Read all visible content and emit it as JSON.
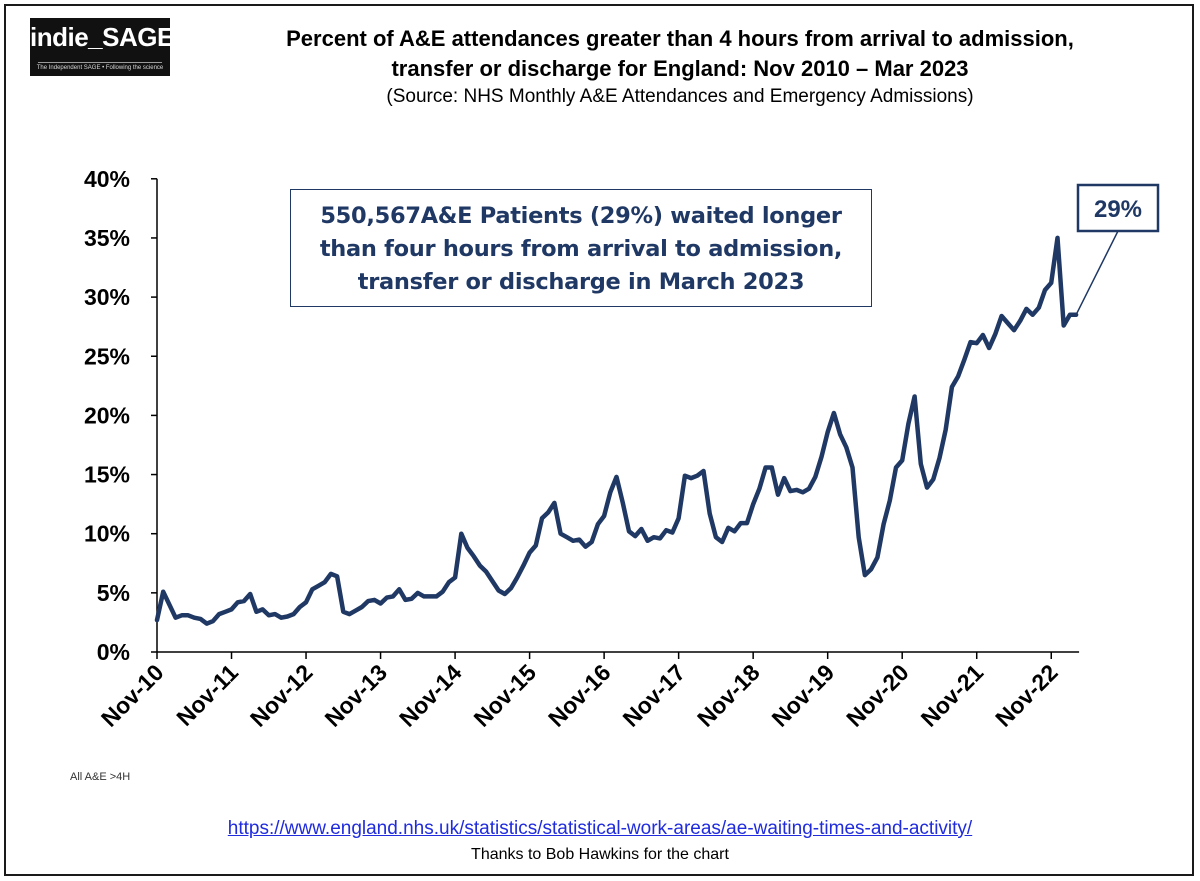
{
  "logo": {
    "main": "indie_SAGE",
    "tagline": "The Independent SAGE • Following the science"
  },
  "header": {
    "title_line1": "Percent of A&E attendances greater than 4 hours from arrival to admission,",
    "title_line2": "transfer or discharge for England: Nov 2010 – Mar 2023",
    "source": "(Source: NHS Monthly A&E Attendances and Emergency Admissions)"
  },
  "callout": {
    "line1": "550,567A&E Patients (29%) waited longer",
    "line2": "than four hours from arrival to admission,",
    "line3": "transfer or discharge in March 2023"
  },
  "footer": {
    "note": "All A&E >4H",
    "url": "https://www.england.nhs.uk/statistics/statistical-work-areas/ae-waiting-times-and-activity/",
    "thanks": "Thanks to Bob Hawkins for the chart"
  },
  "colors": {
    "series": "#1f3864",
    "axis": "#000000"
  },
  "chart_data": {
    "type": "line",
    "title": "Percent of A&E attendances greater than 4 hours from arrival to admission, transfer or discharge for England: Nov 2010 – Mar 2023",
    "xlabel": "",
    "ylabel": "",
    "ylim": [
      0,
      40
    ],
    "y_ticks": [
      0,
      5,
      10,
      15,
      20,
      25,
      30,
      35,
      40
    ],
    "y_tick_labels": [
      "0%",
      "5%",
      "10%",
      "15%",
      "20%",
      "25%",
      "30%",
      "35%",
      "40%"
    ],
    "x_tick_labels": [
      "Nov-10",
      "Nov-11",
      "Nov-12",
      "Nov-13",
      "Nov-14",
      "Nov-15",
      "Nov-16",
      "Nov-17",
      "Nov-18",
      "Nov-19",
      "Nov-20",
      "Nov-21",
      "Nov-22"
    ],
    "x_start": "Nov-10",
    "x_end": "Mar-23",
    "last_value_label": "29%",
    "series": [
      {
        "name": "All A&E >4H",
        "values": [
          2.7,
          5.1,
          4.0,
          2.9,
          3.1,
          3.1,
          2.9,
          2.8,
          2.4,
          2.6,
          3.2,
          3.4,
          3.6,
          4.2,
          4.3,
          4.9,
          3.4,
          3.6,
          3.1,
          3.2,
          2.9,
          3.0,
          3.2,
          3.8,
          4.2,
          5.3,
          5.6,
          5.9,
          6.6,
          6.4,
          3.4,
          3.2,
          3.5,
          3.8,
          4.3,
          4.4,
          4.1,
          4.6,
          4.7,
          5.3,
          4.4,
          4.5,
          5.0,
          4.7,
          4.7,
          4.7,
          5.1,
          5.9,
          6.3,
          10.0,
          8.8,
          8.1,
          7.3,
          6.8,
          6.0,
          5.2,
          4.9,
          5.4,
          6.3,
          7.3,
          8.4,
          9.0,
          11.3,
          11.8,
          12.6,
          10.0,
          9.7,
          9.4,
          9.5,
          8.9,
          9.3,
          10.8,
          11.5,
          13.5,
          14.8,
          12.6,
          10.2,
          9.8,
          10.4,
          9.4,
          9.7,
          9.6,
          10.3,
          10.1,
          11.3,
          14.9,
          14.7,
          14.9,
          15.3,
          11.7,
          9.7,
          9.3,
          10.5,
          10.2,
          10.9,
          10.9,
          12.5,
          13.8,
          15.6,
          15.6,
          13.3,
          14.7,
          13.6,
          13.7,
          13.5,
          13.8,
          14.8,
          16.5,
          18.6,
          20.2,
          18.4,
          17.3,
          15.6,
          9.7,
          6.5,
          7.0,
          8.0,
          10.8,
          12.8,
          15.6,
          16.2,
          19.3,
          21.6,
          15.9,
          13.9,
          14.6,
          16.4,
          18.8,
          22.4,
          23.3,
          24.7,
          26.2,
          26.1,
          26.8,
          25.7,
          26.9,
          28.4,
          27.8,
          27.2,
          28.0,
          29.0,
          28.5,
          29.1,
          30.6,
          31.2,
          35.0,
          27.6,
          28.5,
          28.5
        ]
      }
    ]
  }
}
